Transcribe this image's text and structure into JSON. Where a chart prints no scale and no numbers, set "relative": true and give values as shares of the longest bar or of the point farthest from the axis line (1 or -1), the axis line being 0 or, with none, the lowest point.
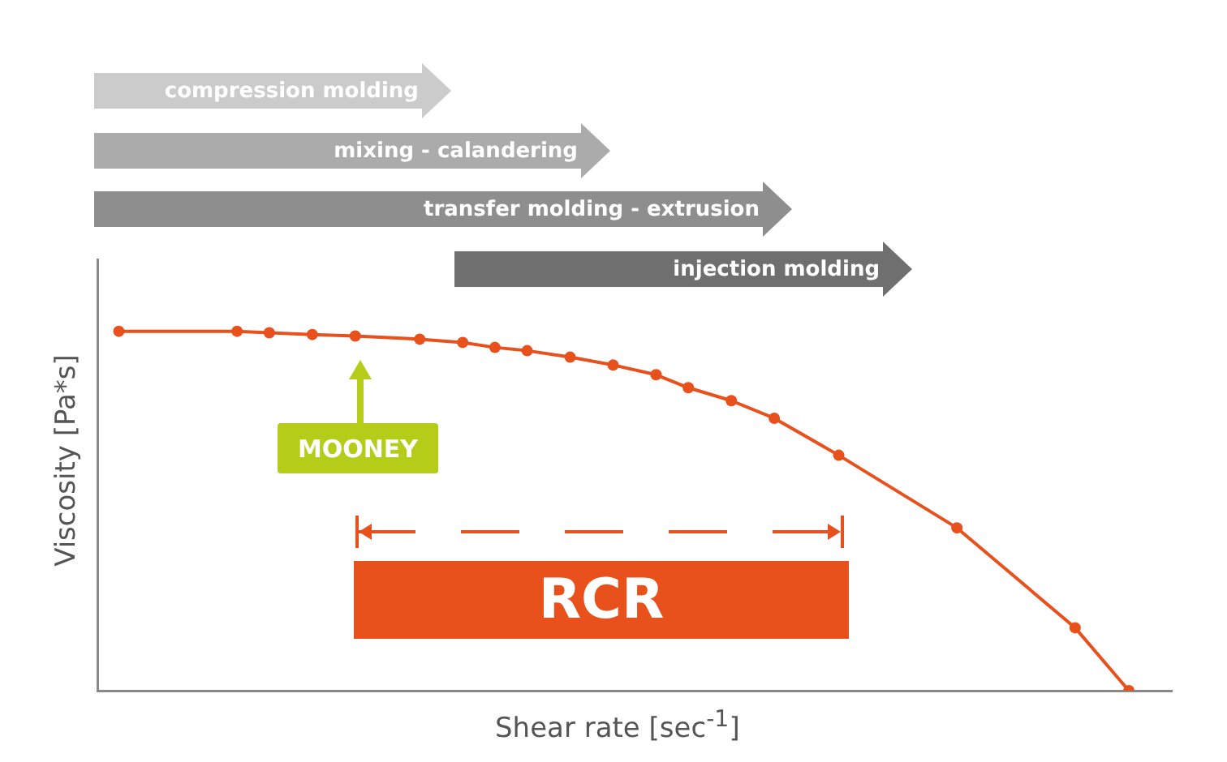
{
  "chart_data": {
    "type": "line",
    "relative": true,
    "xlabel": "Shear rate [sec$^{-1}$]",
    "ylabel": "Viscosity [Pa*s]",
    "legend": false,
    "grid": false,
    "marker": "circle",
    "categories": [
      null,
      null,
      null,
      null,
      null,
      null,
      null,
      null,
      null,
      null,
      null,
      null,
      null,
      null,
      null,
      null,
      null,
      null,
      null,
      null,
      null,
      null,
      null,
      null,
      null,
      null,
      null,
      null,
      null,
      null,
      null,
      null,
      null,
      null,
      null,
      null,
      null,
      null,
      null,
      null,
      null,
      null,
      null,
      null,
      null,
      null,
      null,
      null,
      null,
      null,
      null,
      null,
      null,
      null,
      null,
      null,
      null,
      null,
      null,
      null,
      null,
      null,
      null,
      null,
      null,
      null,
      null,
      null,
      null,
      null,
      null,
      null,
      null,
      null,
      null,
      null,
      null,
      null,
      null,
      null,
      null,
      null,
      null,
      null,
      null,
      null,
      null,
      null,
      null,
      null,
      null,
      null,
      null,
      null,
      null,
      null,
      null,
      null,
      null,
      null,
      null
    ],
    "series": [
      {
        "color": "#e8501c",
        "values": [
          null,
          null,
          1,
          null,
          null,
          null,
          null,
          null,
          null,
          null,
          null,
          null,
          null,
          1,
          null,
          null,
          0.996,
          null,
          null,
          null,
          0.991,
          null,
          null,
          null,
          0.987,
          null,
          null,
          null,
          null,
          null,
          0.978,
          null,
          null,
          null,
          0.969,
          null,
          null,
          0.955,
          null,
          null,
          0.946,
          null,
          null,
          null,
          0.928,
          null,
          null,
          null,
          0.906,
          null,
          null,
          null,
          0.879,
          null,
          null,
          0.843,
          null,
          null,
          null,
          0.807,
          null,
          null,
          null,
          0.758,
          null,
          null,
          null,
          null,
          null,
          0.655,
          null,
          null,
          null,
          null,
          null,
          null,
          null,
          null,
          null,
          null,
          0.453,
          null,
          null,
          null,
          null,
          null,
          null,
          null,
          null,
          null,
          null,
          0.175,
          null,
          null,
          null,
          null,
          0,
          null,
          null,
          null,
          null
        ]
      }
    ],
    "annotations": [
      "compression molding",
      "mixing - calandering",
      "transfer molding - extrusion",
      "injection molding",
      "MOONEY",
      "RCR"
    ]
  }
}
